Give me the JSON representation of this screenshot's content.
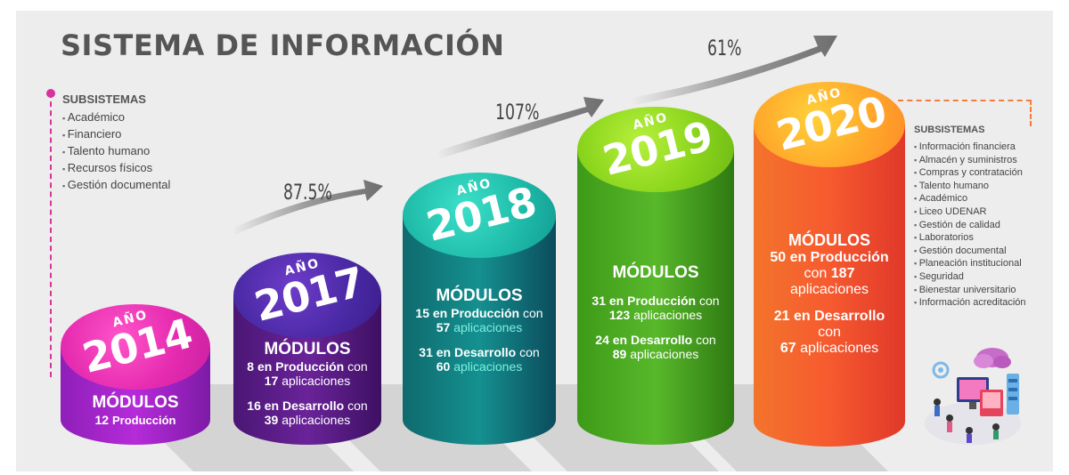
{
  "title": "SISTEMA DE INFORMACIÓN",
  "left_panel": {
    "heading": "SUBSISTEMAS",
    "items": [
      "Académico",
      "Financiero",
      "Talento humano",
      "Recursos físicos",
      "Gestión documental"
    ]
  },
  "right_panel": {
    "heading": "SUBSISTEMAS",
    "items": [
      "Información financiera",
      "Almacén y suministros",
      "Compras y contratación",
      "Talento humano",
      "Académico",
      "Liceo UDENAR",
      "Gestión de calidad",
      "Laboratorios",
      "Gestión documental",
      "Planeación institucional",
      "Seguridad",
      "Bienestar universitario",
      "Información acreditación"
    ]
  },
  "growth": [
    "87.5%",
    "107%",
    "61%"
  ],
  "years": [
    {
      "label": "AÑO",
      "year": "2014",
      "modulos": "MÓDULOS",
      "prod_num": "12",
      "prod_text": "Producción"
    },
    {
      "label": "AÑO",
      "year": "2017",
      "modulos": "MÓDULOS",
      "prod_num": "8",
      "prod_text": "en Producción",
      "prod_con": "con",
      "prod_apps_num": "17",
      "prod_apps": "aplicaciones",
      "dev_num": "16",
      "dev_text": "en Desarrollo",
      "dev_con": "con",
      "dev_apps_num": "39",
      "dev_apps": "aplicaciones"
    },
    {
      "label": "AÑO",
      "year": "2018",
      "modulos": "MÓDULOS",
      "prod_num": "15",
      "prod_text": "en Producción",
      "prod_con": "con",
      "prod_apps_num": "57",
      "prod_apps": "aplicaciones",
      "dev_num": "31",
      "dev_text": "en Desarrollo",
      "dev_con": "con",
      "dev_apps_num": "60",
      "dev_apps": "aplicaciones"
    },
    {
      "label": "AÑO",
      "year": "2019",
      "modulos": "MÓDULOS",
      "prod_num": "31",
      "prod_text": "en Producción",
      "prod_con": "con",
      "prod_apps_num": "123",
      "prod_apps": "aplicaciones",
      "dev_num": "24",
      "dev_text": "en Desarrollo",
      "dev_con": "con",
      "dev_apps_num": "89",
      "dev_apps": "aplicaciones"
    },
    {
      "label": "AÑO",
      "year": "2020",
      "modulos": "MÓDULOS",
      "prod_num": "50",
      "prod_text": "en Producción",
      "prod_con": "con",
      "prod_apps_num": "187",
      "prod_apps": "aplicaciones",
      "dev_num": "21",
      "dev_text": "en Desarrollo",
      "dev_con": "con",
      "dev_apps_num": "67",
      "dev_apps": "aplicaciones"
    }
  ],
  "colors": {
    "c2014": "#b52bd9",
    "c2017": "#5b1e8c",
    "c2018": "#137d7d",
    "c2019": "#4aa81c",
    "c2020": "#f35a2c"
  }
}
